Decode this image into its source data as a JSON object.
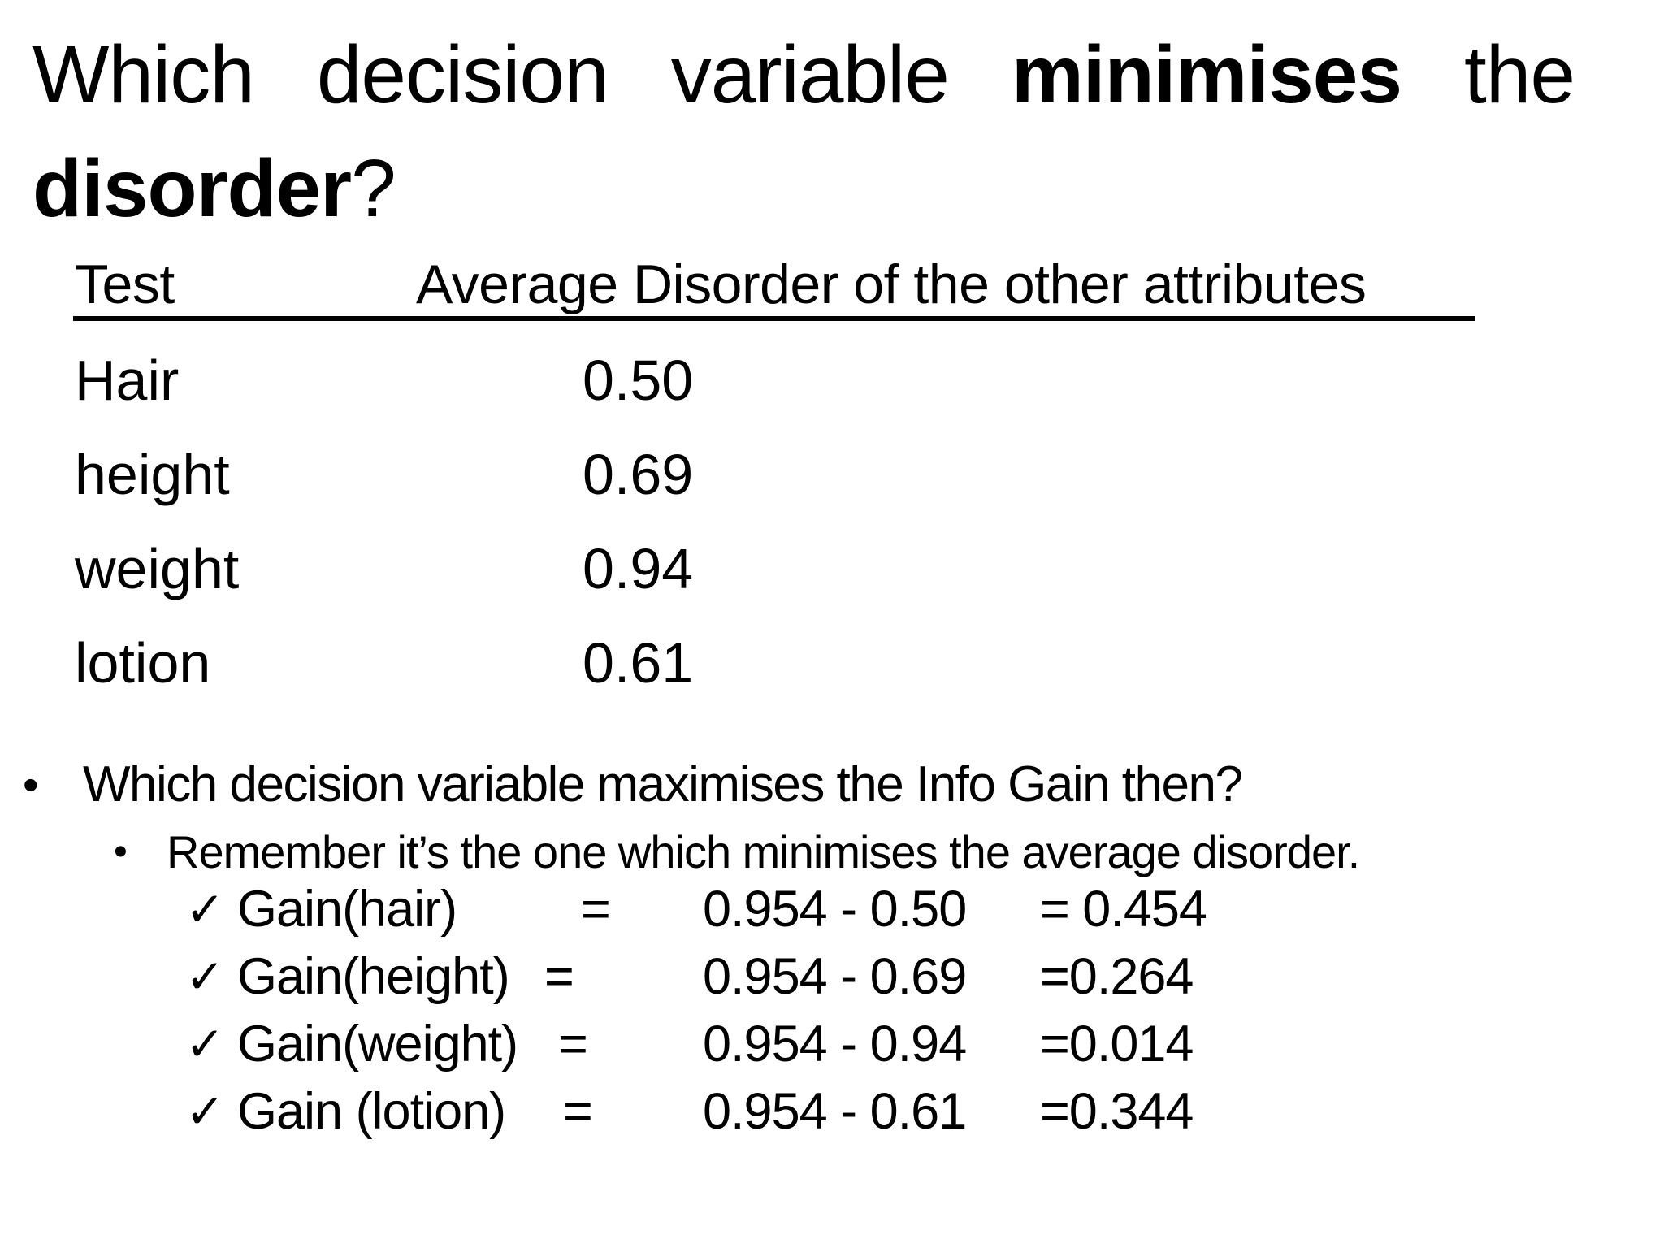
{
  "slide": {
    "colors": {
      "text": "#000000",
      "background": "#ffffff"
    },
    "bullet_glyph": "•",
    "title": {
      "line1_part1": "Which decision variable ",
      "line1_bold": "minimises",
      "line1_part2": " the",
      "line2_bold": "disorder",
      "line2_tail": "?"
    },
    "table": {
      "header": {
        "test": "Test",
        "value": "Average Disorder of the other attributes"
      },
      "rows": [
        {
          "test": "Hair",
          "value": "0.50"
        },
        {
          "test": "height",
          "value": "0.69"
        },
        {
          "test": "weight",
          "value": "0.94"
        },
        {
          "test": "lotion",
          "value": "0.61"
        }
      ]
    },
    "bullets": {
      "main": "Which decision variable maximises the Info Gain then?",
      "sub": "Remember it’s the one which minimises the average disorder."
    },
    "gains": [
      {
        "check": "✓",
        "label": "Gain(hair)",
        "eq": "=",
        "expr": "0.954 - 0.50",
        "result": "= 0.454"
      },
      {
        "check": "✓",
        "label": "Gain(height)",
        "eq": "=",
        "expr": "0.954 - 0.69",
        "result": "=0.264"
      },
      {
        "check": "✓",
        "label": "Gain(weight)",
        "eq": "=",
        "expr": "0.954 - 0.94",
        "result": "=0.014"
      },
      {
        "check": "✓",
        "label": "Gain (lotion)",
        "eq": "=",
        "expr": "0.954 - 0.61",
        "result": "=0.344"
      }
    ]
  }
}
